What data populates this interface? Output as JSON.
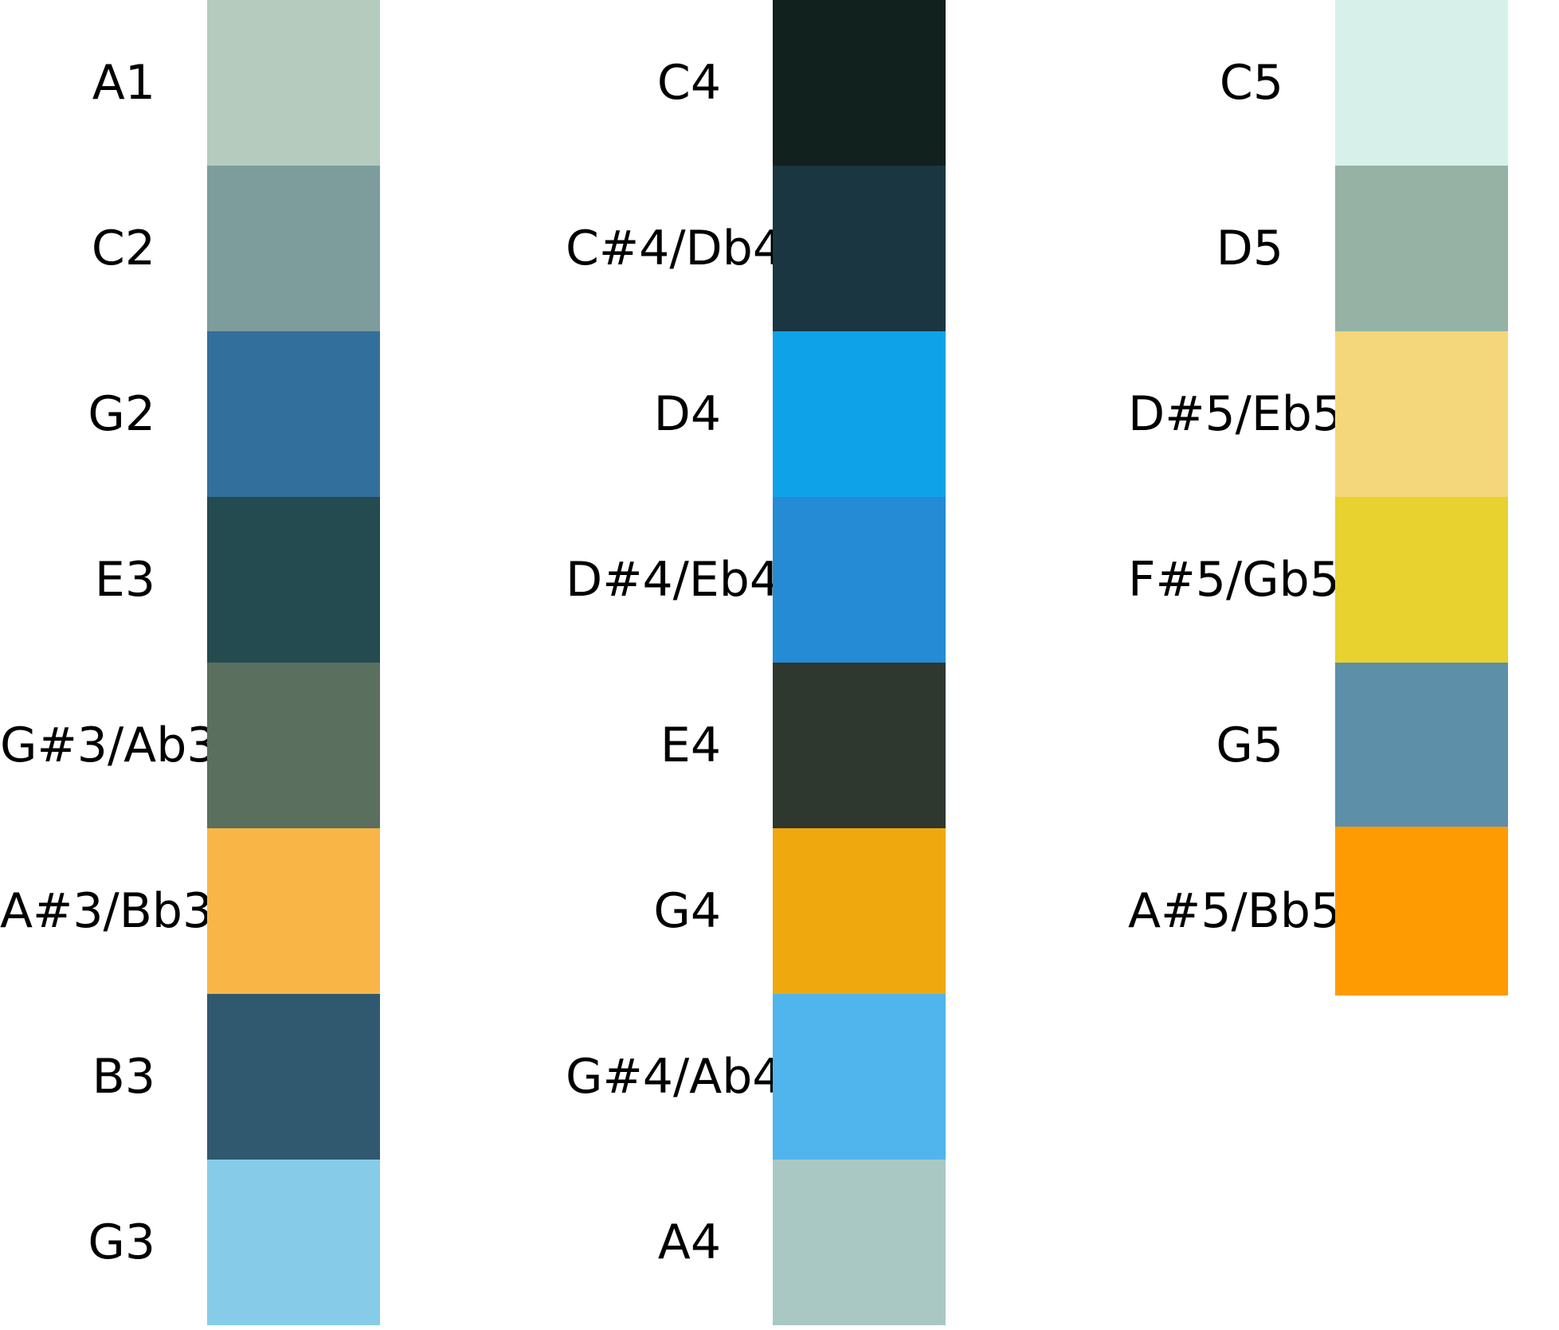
{
  "columns": [
    {
      "swatches": [
        {
          "note": "A1",
          "color": "#b4cbbd"
        },
        {
          "note": "C2",
          "color": "#7d9d9c"
        },
        {
          "note": "G2",
          "color": "#336f9c"
        },
        {
          "note": "E3",
          "color": "#234b50"
        },
        {
          "note": "G#3/Ab3",
          "color": "#5a6f5e"
        },
        {
          "note": "A#3/Bb3",
          "color": "#f9b647"
        },
        {
          "note": "B3",
          "color": "#30596f"
        },
        {
          "note": "G3",
          "color": "#86cce9"
        }
      ]
    },
    {
      "swatches": [
        {
          "note": "C4",
          "color": "#10211e"
        },
        {
          "note": "C#4/Db4",
          "color": "#1a3641"
        },
        {
          "note": "D4",
          "color": "#0ea2e9"
        },
        {
          "note": "D#4/Eb4",
          "color": "#248bd4"
        },
        {
          "note": "E4",
          "color": "#2f382e"
        },
        {
          "note": "G4",
          "color": "#efa90f"
        },
        {
          "note": "G#4/Ab4",
          "color": "#4fb5ec"
        },
        {
          "note": "A4",
          "color": "#a9c8c4"
        }
      ]
    },
    {
      "swatches": [
        {
          "note": "C5",
          "color": "#d7f1ea"
        },
        {
          "note": "D5",
          "color": "#96b2a5"
        },
        {
          "note": "D#5/Eb5",
          "color": "#f4d77b"
        },
        {
          "note": "F#5/Gb5",
          "color": "#e7d22f"
        },
        {
          "note": "G5",
          "color": "#5e8fa8"
        },
        {
          "note": "A#5/Bb5",
          "color": "#ff9b02"
        }
      ]
    }
  ]
}
